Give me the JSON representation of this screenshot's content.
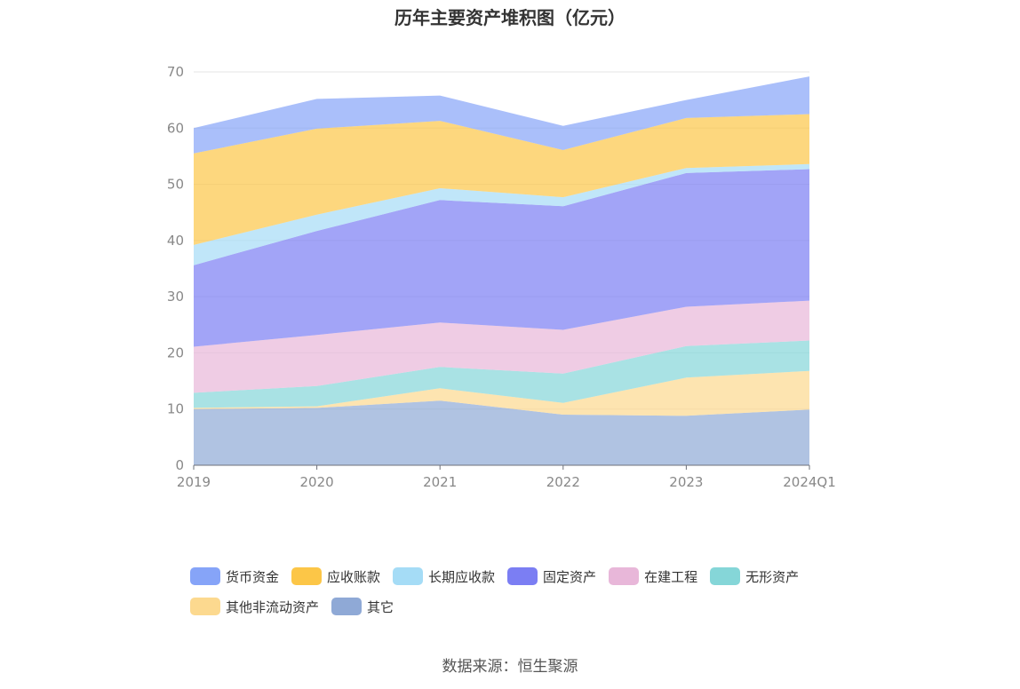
{
  "chart_data": {
    "type": "area",
    "stacked": true,
    "title": "历年主要资产堆积图（亿元）",
    "xlabel": "",
    "ylabel": "",
    "categories": [
      "2019",
      "2020",
      "2021",
      "2022",
      "2023",
      "2024Q1"
    ],
    "ylim": [
      0,
      70
    ],
    "yticks": [
      "0",
      "10",
      "20",
      "30",
      "40",
      "50",
      "60",
      "70"
    ],
    "grid": true,
    "legend_position": "bottom",
    "series": [
      {
        "name": "其它",
        "color": "#8fa9d6",
        "values": [
          10.0,
          10.2,
          11.5,
          9.0,
          8.8,
          9.9
        ]
      },
      {
        "name": "其他非流动资产",
        "color": "#fcd98f",
        "values": [
          0.2,
          0.3,
          2.2,
          2.1,
          6.8,
          6.9
        ]
      },
      {
        "name": "无形资产",
        "color": "#85d6d8",
        "values": [
          2.7,
          3.6,
          3.8,
          5.2,
          5.6,
          5.4
        ]
      },
      {
        "name": "在建工程",
        "color": "#e8b7d9",
        "values": [
          8.2,
          9.1,
          7.9,
          7.8,
          7.0,
          7.1
        ]
      },
      {
        "name": "固定资产",
        "color": "#7b7ef3",
        "values": [
          14.5,
          18.5,
          21.8,
          22.0,
          23.8,
          23.4
        ]
      },
      {
        "name": "长期应收款",
        "color": "#a5dcf6",
        "values": [
          3.6,
          2.9,
          2.1,
          1.6,
          0.9,
          0.9
        ]
      },
      {
        "name": "应收账款",
        "color": "#fcc647",
        "values": [
          16.3,
          15.3,
          12.0,
          8.4,
          8.9,
          8.9
        ]
      },
      {
        "name": "货币资金",
        "color": "#86a4f8",
        "values": [
          4.5,
          5.3,
          4.5,
          4.3,
          3.2,
          6.7
        ]
      }
    ]
  },
  "legend": [
    {
      "label": "货币资金",
      "color": "#86a4f8"
    },
    {
      "label": "应收账款",
      "color": "#fcc647"
    },
    {
      "label": "长期应收款",
      "color": "#a5dcf6"
    },
    {
      "label": "固定资产",
      "color": "#7b7ef3"
    },
    {
      "label": "在建工程",
      "color": "#e8b7d9"
    },
    {
      "label": "无形资产",
      "color": "#85d6d8"
    },
    {
      "label": "其他非流动资产",
      "color": "#fcd98f"
    },
    {
      "label": "其它",
      "color": "#8fa9d6"
    }
  ],
  "source": "数据来源：恒生聚源"
}
